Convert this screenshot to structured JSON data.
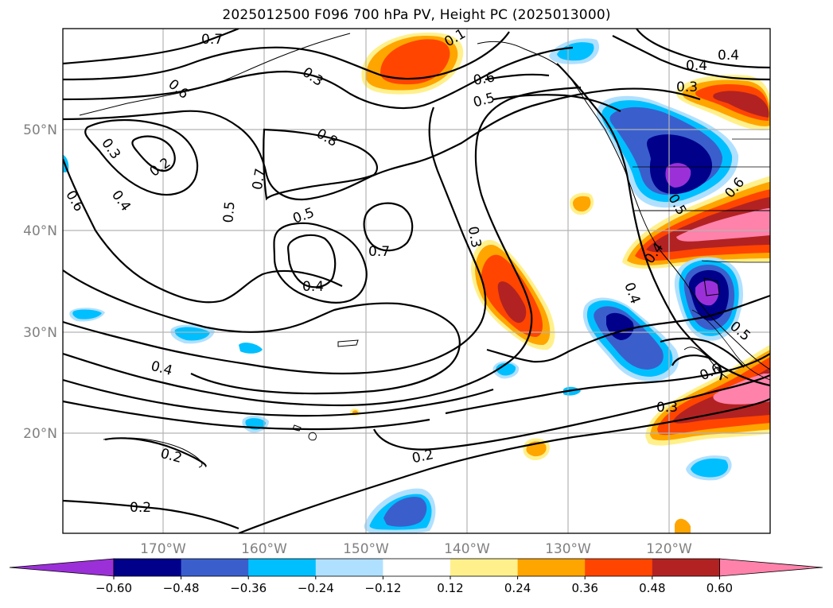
{
  "title": "2025012500 F096 700 hPa PV, Height PC (2025013000)",
  "lat_labels": [
    "50°N",
    "40°N",
    "30°N",
    "20°N"
  ],
  "lon_labels": [
    "170°W",
    "160°W",
    "150°W",
    "140°W",
    "130°W",
    "120°W"
  ],
  "contour_labels": [
    "0.7",
    "0.6",
    "0.3",
    "0.2",
    "0.4",
    "0.6",
    "0.3",
    "0.8",
    "0.7",
    "0.5",
    "0.5",
    "0.4",
    "0.7",
    "0.3",
    "0.6",
    "0.5",
    "0.4",
    "0.4",
    "0.3",
    "0.6",
    "0.5",
    "0.4",
    "0.5",
    "0.6",
    "0.3",
    "0.2",
    "0.2",
    "0.2",
    "0.4",
    "0.1",
    "0.4"
  ],
  "colorbar": {
    "colors": [
      "#9b30d8",
      "#00008b",
      "#3a5fcd",
      "#00bfff",
      "#b0e0ff",
      "#ffffff",
      "#fff08c",
      "#ffa500",
      "#ff4500",
      "#b22222",
      "#ff82ab"
    ],
    "tick_labels": [
      "−0.60",
      "−0.48",
      "−0.36",
      "−0.24",
      "−0.12",
      "0.12",
      "0.24",
      "0.36",
      "0.48",
      "0.60"
    ]
  }
}
